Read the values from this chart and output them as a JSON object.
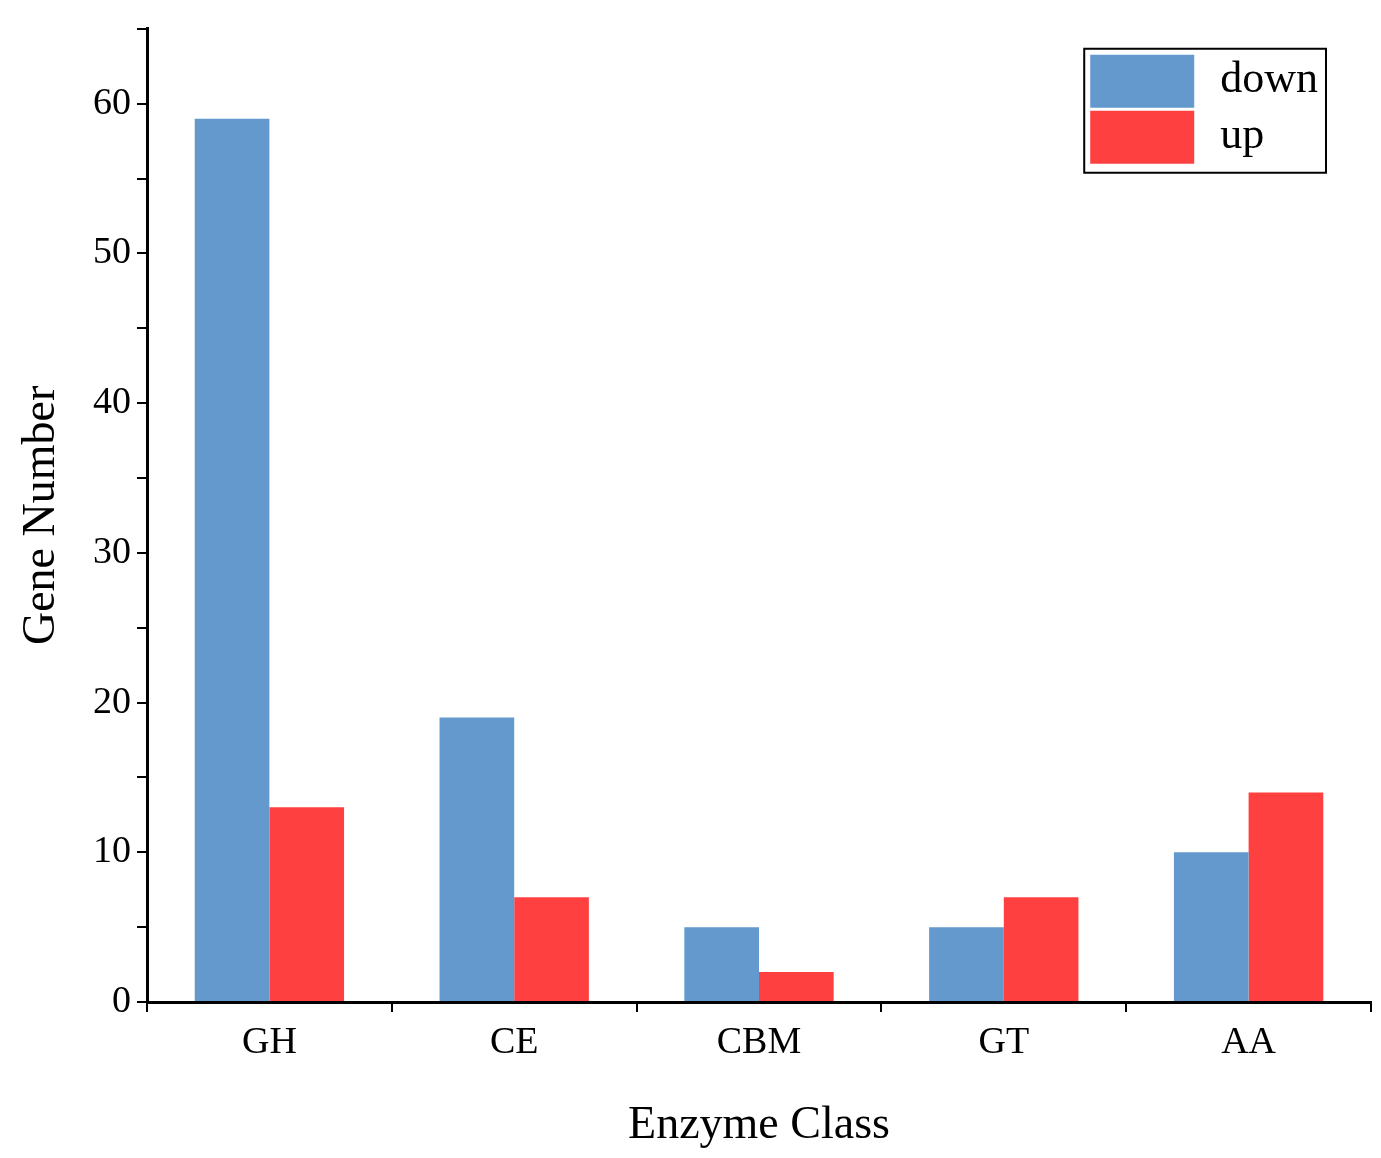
{
  "chart_data": {
    "type": "bar",
    "xlabel": "Enzyme Class",
    "ylabel": "Gene Number",
    "categories": [
      "GH",
      "CE",
      "CBM",
      "GT",
      "AA"
    ],
    "series": [
      {
        "name": "down",
        "color": "#6399cc",
        "values": [
          59,
          19,
          5,
          5,
          10
        ]
      },
      {
        "name": "up",
        "color": "#ff4040",
        "values": [
          13,
          7,
          2,
          7,
          14
        ]
      }
    ],
    "ylim": [
      0,
      65
    ],
    "yticks": [
      0,
      {
        "value": 5,
        "label": null
      },
      10,
      {
        "value": 15,
        "label": null
      },
      20,
      {
        "value": 25,
        "label": null
      },
      30,
      {
        "value": 35,
        "label": null
      },
      40,
      {
        "value": 45,
        "label": null
      },
      50,
      {
        "value": 55,
        "label": null
      },
      60,
      {
        "value": 65,
        "label": null
      }
    ],
    "grid": false,
    "legend": "top right"
  }
}
